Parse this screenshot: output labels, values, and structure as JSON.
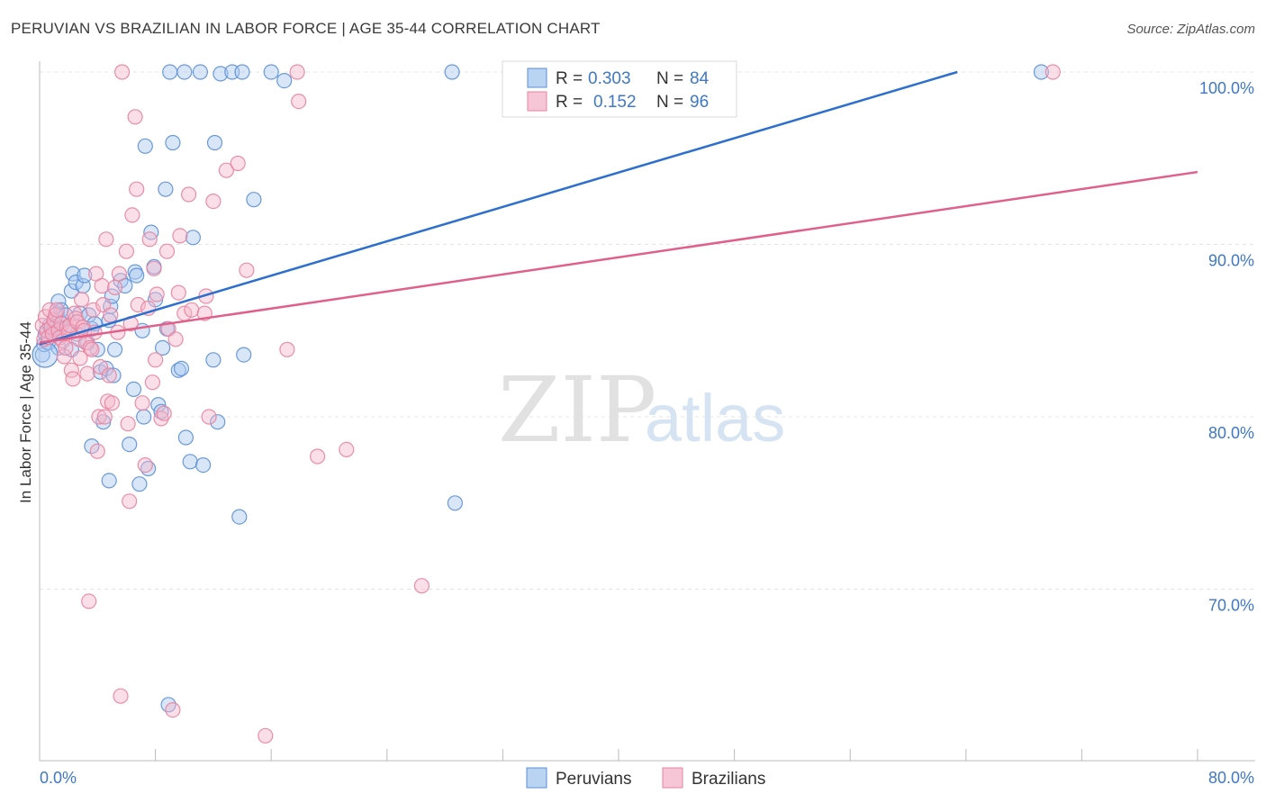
{
  "header": {
    "title": "PERUVIAN VS BRAZILIAN IN LABOR FORCE | AGE 35-44 CORRELATION CHART",
    "source": "Source: ZipAtlas.com"
  },
  "watermark": {
    "zip": "ZIP",
    "atlas": "atlas"
  },
  "colors": {
    "peruvian_fill": "#a8c8f0",
    "peruvian_stroke": "#5b8fd8",
    "peruvian_line": "#2d6fce",
    "brazilian_fill": "#f5b8cc",
    "brazilian_stroke": "#e8839f",
    "brazilian_line": "#e0608a",
    "tick_text": "#3f78c4"
  },
  "legend": {
    "rows": [
      {
        "r_label": "R =",
        "r_value": "0.303",
        "n_label": "N =",
        "n_value": "84"
      },
      {
        "r_label": "R =",
        "r_value": "0.152",
        "n_label": "N =",
        "n_value": "96"
      }
    ]
  },
  "chart_data": {
    "type": "scatter",
    "title": "PERUVIAN VS BRAZILIAN IN LABOR FORCE | AGE 35-44 CORRELATION CHART",
    "xlabel": "",
    "ylabel": "In Labor Force | Age 35-44",
    "xlim": [
      0,
      80
    ],
    "ylim": [
      60,
      101.5
    ],
    "x_tick_labels": [
      "0.0%",
      "80.0%"
    ],
    "y_ticks": [
      70,
      80,
      90,
      100
    ],
    "y_tick_labels": [
      "70.0%",
      "80.0%",
      "90.0%",
      "100.0%"
    ],
    "grid": true,
    "legend_position": "top-center",
    "series": [
      {
        "name": "Peruvians",
        "R": 0.303,
        "N": 84,
        "trend": {
          "x": [
            0,
            63.4
          ],
          "y": [
            84.2,
            100.0
          ]
        },
        "points": [
          [
            0.2,
            83.6
          ],
          [
            0.3,
            84.2
          ],
          [
            0.4,
            84.8
          ],
          [
            0.5,
            85.0
          ],
          [
            0.6,
            84.3
          ],
          [
            0.7,
            85.3
          ],
          [
            0.8,
            84.9
          ],
          [
            0.9,
            85.1
          ],
          [
            1.0,
            85.6
          ],
          [
            1.1,
            84.8
          ],
          [
            1.2,
            86.0
          ],
          [
            1.3,
            86.7
          ],
          [
            1.4,
            85.1
          ],
          [
            1.5,
            86.2
          ],
          [
            1.6,
            85.4
          ],
          [
            1.8,
            85.9
          ],
          [
            2.0,
            85.0
          ],
          [
            2.2,
            87.3
          ],
          [
            2.3,
            88.3
          ],
          [
            2.5,
            87.8
          ],
          [
            2.8,
            86.0
          ],
          [
            3.0,
            87.6
          ],
          [
            3.1,
            88.2
          ],
          [
            3.4,
            85.9
          ],
          [
            3.6,
            85.1
          ],
          [
            3.8,
            85.4
          ],
          [
            4.0,
            83.9
          ],
          [
            4.2,
            82.6
          ],
          [
            4.4,
            79.7
          ],
          [
            4.6,
            82.8
          ],
          [
            4.8,
            85.6
          ],
          [
            4.9,
            86.4
          ],
          [
            5.0,
            87.0
          ],
          [
            5.2,
            83.9
          ],
          [
            5.6,
            87.9
          ],
          [
            5.9,
            87.6
          ],
          [
            6.2,
            78.4
          ],
          [
            6.5,
            81.6
          ],
          [
            6.6,
            88.4
          ],
          [
            6.7,
            88.2
          ],
          [
            6.9,
            76.1
          ],
          [
            7.1,
            85.0
          ],
          [
            7.2,
            80.0
          ],
          [
            7.3,
            95.7
          ],
          [
            7.5,
            77.0
          ],
          [
            7.7,
            90.7
          ],
          [
            7.9,
            88.7
          ],
          [
            8.0,
            86.8
          ],
          [
            8.2,
            80.7
          ],
          [
            8.4,
            80.3
          ],
          [
            8.5,
            84.0
          ],
          [
            8.7,
            93.2
          ],
          [
            8.8,
            85.1
          ],
          [
            9.0,
            100.0
          ],
          [
            9.2,
            95.9
          ],
          [
            9.6,
            82.7
          ],
          [
            9.8,
            82.8
          ],
          [
            10.0,
            100.0
          ],
          [
            10.1,
            78.8
          ],
          [
            10.4,
            77.4
          ],
          [
            10.6,
            90.4
          ],
          [
            11.1,
            100.0
          ],
          [
            11.3,
            77.2
          ],
          [
            12.0,
            83.3
          ],
          [
            12.1,
            95.9
          ],
          [
            12.3,
            79.7
          ],
          [
            12.5,
            99.9
          ],
          [
            13.3,
            100.0
          ],
          [
            13.8,
            74.2
          ],
          [
            14.0,
            100.0
          ],
          [
            14.1,
            83.6
          ],
          [
            14.8,
            92.6
          ],
          [
            16.0,
            100.0
          ],
          [
            16.9,
            99.5
          ],
          [
            28.5,
            100.0
          ],
          [
            28.7,
            75.0
          ],
          [
            69.2,
            100.0
          ],
          [
            2.6,
            84.8
          ],
          [
            3.3,
            84.3
          ],
          [
            3.6,
            78.3
          ],
          [
            1.3,
            84.0
          ],
          [
            2.2,
            83.9
          ],
          [
            5.1,
            82.4
          ],
          [
            8.9,
            63.3
          ],
          [
            4.8,
            76.3
          ]
        ]
      },
      {
        "name": "Brazilians",
        "R": 0.152,
        "N": 96,
        "trend": {
          "x": [
            0,
            80
          ],
          "y": [
            84.3,
            94.2
          ]
        },
        "points": [
          [
            0.2,
            85.3
          ],
          [
            0.3,
            84.5
          ],
          [
            0.4,
            85.8
          ],
          [
            0.5,
            85.0
          ],
          [
            0.6,
            84.6
          ],
          [
            0.7,
            86.2
          ],
          [
            0.8,
            85.2
          ],
          [
            0.9,
            84.8
          ],
          [
            1.0,
            85.6
          ],
          [
            1.1,
            85.9
          ],
          [
            1.2,
            86.2
          ],
          [
            1.3,
            85.0
          ],
          [
            1.4,
            84.6
          ],
          [
            1.5,
            85.4
          ],
          [
            1.6,
            84.4
          ],
          [
            1.7,
            83.5
          ],
          [
            1.8,
            84.0
          ],
          [
            1.9,
            85.2
          ],
          [
            2.0,
            84.9
          ],
          [
            2.1,
            85.3
          ],
          [
            2.2,
            82.7
          ],
          [
            2.3,
            82.2
          ],
          [
            2.4,
            86.0
          ],
          [
            2.5,
            85.7
          ],
          [
            2.6,
            85.5
          ],
          [
            2.7,
            84.5
          ],
          [
            2.8,
            83.4
          ],
          [
            2.9,
            86.8
          ],
          [
            3.0,
            85.2
          ],
          [
            3.1,
            85.0
          ],
          [
            3.2,
            84.3
          ],
          [
            3.3,
            82.5
          ],
          [
            3.4,
            69.3
          ],
          [
            3.5,
            84.0
          ],
          [
            3.6,
            83.9
          ],
          [
            3.7,
            86.2
          ],
          [
            3.8,
            84.9
          ],
          [
            3.9,
            88.3
          ],
          [
            4.0,
            78.0
          ],
          [
            4.1,
            80.0
          ],
          [
            4.2,
            82.9
          ],
          [
            4.3,
            87.6
          ],
          [
            4.4,
            86.5
          ],
          [
            4.5,
            80.0
          ],
          [
            4.6,
            90.3
          ],
          [
            4.7,
            80.9
          ],
          [
            4.8,
            82.4
          ],
          [
            4.9,
            85.9
          ],
          [
            5.0,
            80.8
          ],
          [
            5.2,
            87.5
          ],
          [
            5.4,
            84.9
          ],
          [
            5.5,
            88.3
          ],
          [
            5.6,
            63.8
          ],
          [
            5.7,
            100.0
          ],
          [
            6.0,
            89.6
          ],
          [
            6.1,
            79.6
          ],
          [
            6.2,
            75.1
          ],
          [
            6.4,
            91.7
          ],
          [
            6.6,
            97.4
          ],
          [
            6.7,
            93.2
          ],
          [
            6.8,
            86.5
          ],
          [
            7.1,
            80.8
          ],
          [
            7.3,
            77.2
          ],
          [
            7.5,
            86.3
          ],
          [
            7.6,
            90.3
          ],
          [
            7.8,
            82.0
          ],
          [
            7.9,
            88.6
          ],
          [
            8.0,
            83.3
          ],
          [
            8.1,
            87.1
          ],
          [
            8.4,
            79.9
          ],
          [
            8.6,
            80.2
          ],
          [
            8.8,
            89.6
          ],
          [
            8.9,
            85.1
          ],
          [
            9.2,
            63.0
          ],
          [
            9.4,
            84.5
          ],
          [
            9.6,
            87.2
          ],
          [
            9.7,
            90.5
          ],
          [
            10.0,
            86.0
          ],
          [
            10.3,
            92.9
          ],
          [
            10.5,
            86.2
          ],
          [
            11.4,
            86.0
          ],
          [
            11.5,
            87.0
          ],
          [
            11.7,
            80.0
          ],
          [
            12.0,
            92.5
          ],
          [
            12.9,
            94.3
          ],
          [
            13.7,
            94.7
          ],
          [
            14.3,
            88.5
          ],
          [
            15.6,
            61.5
          ],
          [
            17.1,
            83.9
          ],
          [
            17.8,
            100.0
          ],
          [
            17.9,
            98.3
          ],
          [
            19.2,
            77.7
          ],
          [
            21.2,
            78.1
          ],
          [
            26.4,
            70.2
          ],
          [
            70.0,
            100.0
          ],
          [
            6.3,
            85.4
          ]
        ]
      }
    ]
  },
  "bottom_legend": {
    "items": [
      "Peruvians",
      "Brazilians"
    ]
  }
}
